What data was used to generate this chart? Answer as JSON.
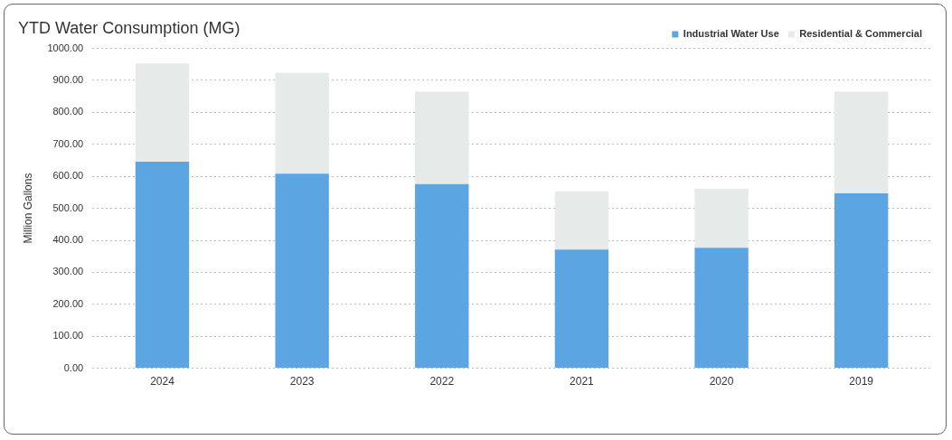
{
  "chart_data": {
    "type": "bar",
    "title": "YTD Water Consumption (MG)",
    "ylabel": "Million Gallons",
    "categories": [
      "2024",
      "2023",
      "2022",
      "2021",
      "2020",
      "2019"
    ],
    "series": [
      {
        "name": "Industrial Water Use",
        "color": "#5aa5e2",
        "values": [
          646,
          608,
          576,
          371,
          377,
          547
        ]
      },
      {
        "name": "Residential & Commercial",
        "color": "#e6eae8",
        "values": [
          307,
          316,
          289,
          182,
          184,
          318
        ]
      }
    ],
    "stacked": true,
    "ylim": [
      0,
      1000
    ],
    "yticks": [
      {
        "value": 0,
        "label": "0.00"
      },
      {
        "value": 100,
        "label": "100.00"
      },
      {
        "value": 200,
        "label": "200.00"
      },
      {
        "value": 300,
        "label": "300.00"
      },
      {
        "value": 400,
        "label": "400.00"
      },
      {
        "value": 500,
        "label": "500.00"
      },
      {
        "value": 600,
        "label": "600.00"
      },
      {
        "value": 700,
        "label": "700.00"
      },
      {
        "value": 800,
        "label": "800.00"
      },
      {
        "value": 900,
        "label": "900.00"
      },
      {
        "value": 1000,
        "label": "1000.00"
      }
    ],
    "grid": "y",
    "legend": "top right"
  }
}
